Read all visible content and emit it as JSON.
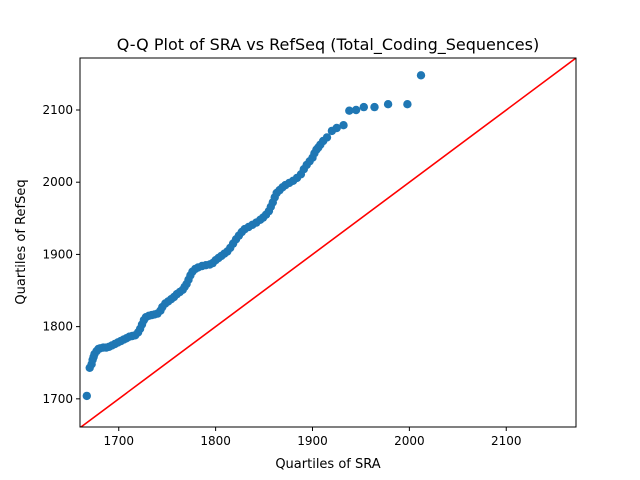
{
  "chart_data": {
    "type": "scatter",
    "title": "Q-Q Plot of SRA vs RefSeq (Total_Coding_Sequences)",
    "xlabel": "Quartiles of SRA",
    "ylabel": "Quartiles of RefSeq",
    "xlim": [
      1660,
      2172
    ],
    "ylim": [
      1661,
      2172
    ],
    "xticks": [
      1700,
      1800,
      1900,
      2000,
      2100
    ],
    "yticks": [
      1700,
      1800,
      1900,
      2000,
      2100
    ],
    "grid": false,
    "legend": "none",
    "colors": {
      "points": "#1f77b4",
      "reference_line": "#ff0000",
      "axes": "#000000"
    },
    "reference_line": {
      "from": [
        1660,
        1660
      ],
      "to": [
        2172,
        2172
      ]
    },
    "points": [
      [
        1667,
        1704
      ],
      [
        1670,
        1743
      ],
      [
        1672,
        1748
      ],
      [
        1673,
        1754
      ],
      [
        1674,
        1758
      ],
      [
        1675,
        1762
      ],
      [
        1677,
        1766
      ],
      [
        1679,
        1769
      ],
      [
        1681,
        1770
      ],
      [
        1684,
        1771
      ],
      [
        1687,
        1771
      ],
      [
        1690,
        1772
      ],
      [
        1693,
        1774
      ],
      [
        1696,
        1776
      ],
      [
        1699,
        1778
      ],
      [
        1702,
        1780
      ],
      [
        1705,
        1782
      ],
      [
        1708,
        1784
      ],
      [
        1711,
        1786
      ],
      [
        1714,
        1787
      ],
      [
        1717,
        1788
      ],
      [
        1720,
        1792
      ],
      [
        1722,
        1797
      ],
      [
        1724,
        1803
      ],
      [
        1726,
        1809
      ],
      [
        1728,
        1813
      ],
      [
        1731,
        1815
      ],
      [
        1734,
        1816
      ],
      [
        1737,
        1817
      ],
      [
        1740,
        1818
      ],
      [
        1743,
        1822
      ],
      [
        1745,
        1827
      ],
      [
        1748,
        1832
      ],
      [
        1751,
        1835
      ],
      [
        1754,
        1838
      ],
      [
        1757,
        1841
      ],
      [
        1760,
        1845
      ],
      [
        1763,
        1848
      ],
      [
        1766,
        1851
      ],
      [
        1768,
        1855
      ],
      [
        1770,
        1859
      ],
      [
        1772,
        1865
      ],
      [
        1774,
        1871
      ],
      [
        1776,
        1876
      ],
      [
        1779,
        1880
      ],
      [
        1782,
        1882
      ],
      [
        1786,
        1884
      ],
      [
        1790,
        1885
      ],
      [
        1794,
        1886
      ],
      [
        1797,
        1888
      ],
      [
        1800,
        1892
      ],
      [
        1803,
        1895
      ],
      [
        1806,
        1898
      ],
      [
        1809,
        1901
      ],
      [
        1812,
        1904
      ],
      [
        1815,
        1909
      ],
      [
        1818,
        1915
      ],
      [
        1821,
        1921
      ],
      [
        1824,
        1926
      ],
      [
        1827,
        1931
      ],
      [
        1830,
        1935
      ],
      [
        1834,
        1938
      ],
      [
        1838,
        1941
      ],
      [
        1842,
        1944
      ],
      [
        1846,
        1948
      ],
      [
        1849,
        1951
      ],
      [
        1852,
        1955
      ],
      [
        1855,
        1960
      ],
      [
        1857,
        1966
      ],
      [
        1859,
        1972
      ],
      [
        1861,
        1979
      ],
      [
        1863,
        1985
      ],
      [
        1866,
        1989
      ],
      [
        1869,
        1993
      ],
      [
        1872,
        1996
      ],
      [
        1876,
        1999
      ],
      [
        1880,
        2002
      ],
      [
        1884,
        2006
      ],
      [
        1888,
        2011
      ],
      [
        1891,
        2018
      ],
      [
        1894,
        2024
      ],
      [
        1897,
        2029
      ],
      [
        1900,
        2034
      ],
      [
        1902,
        2040
      ],
      [
        1904,
        2045
      ],
      [
        1906,
        2048
      ],
      [
        1908,
        2052
      ],
      [
        1911,
        2057
      ],
      [
        1915,
        2062
      ],
      [
        1920,
        2071
      ],
      [
        1925,
        2075
      ],
      [
        1932,
        2079
      ],
      [
        1938,
        2099
      ],
      [
        1945,
        2100
      ],
      [
        1953,
        2104
      ],
      [
        1964,
        2104
      ],
      [
        1978,
        2108
      ],
      [
        1998,
        2108
      ],
      [
        2012,
        2148
      ]
    ]
  }
}
